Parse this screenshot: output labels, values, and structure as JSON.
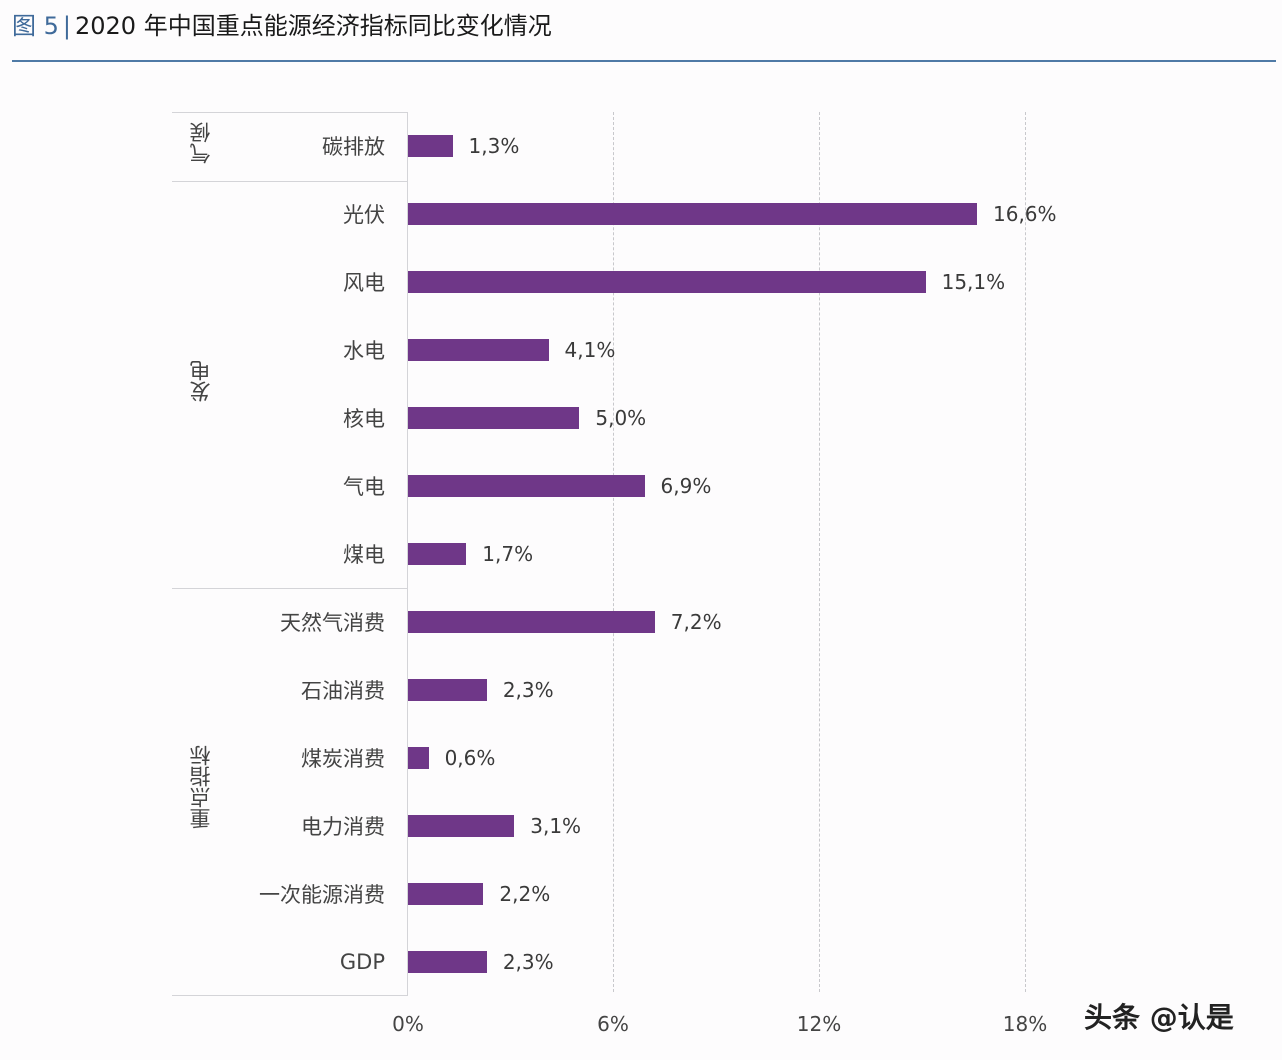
{
  "header": {
    "fig_label": "图 5",
    "separator": "|",
    "title": "2020 年中国重点能源经济指标同比变化情况"
  },
  "watermark": "头条 @认是",
  "colors": {
    "bar": "#6f3788",
    "rule": "#4f7aa6",
    "fig_label": "#3f6a9a"
  },
  "chart_data": {
    "type": "bar",
    "orientation": "horizontal",
    "title": "2020 年中国重点能源经济指标同比变化情况",
    "xlabel": "",
    "ylabel": "",
    "xlim": [
      0,
      18
    ],
    "x_ticks": [
      "0%",
      "6%",
      "12%",
      "18%"
    ],
    "grid": "vertical dashed at 6%, 12%, 18%",
    "groups": [
      {
        "name": "气候",
        "categories": [
          "碳排放"
        ]
      },
      {
        "name": "发电",
        "categories": [
          "光伏",
          "风电",
          "水电",
          "核电",
          "气电",
          "煤电"
        ]
      },
      {
        "name": "重点指标",
        "categories": [
          "天然气消费",
          "石油消费",
          "煤炭消费",
          "电力消费",
          "一次能源消费",
          "GDP"
        ]
      }
    ],
    "categories": [
      "碳排放",
      "光伏",
      "风电",
      "水电",
      "核电",
      "气电",
      "煤电",
      "天然气消费",
      "石油消费",
      "煤炭消费",
      "电力消费",
      "一次能源消费",
      "GDP"
    ],
    "values": [
      1.3,
      16.6,
      15.1,
      4.1,
      5.0,
      6.9,
      1.7,
      7.2,
      2.3,
      0.6,
      3.1,
      2.2,
      2.3
    ],
    "value_labels": [
      "1,3%",
      "16,6%",
      "15,1%",
      "4,1%",
      "5,0%",
      "6,9%",
      "1,7%",
      "7,2%",
      "2,3%",
      "0,6%",
      "3,1%",
      "2,2%",
      "2,3%"
    ]
  }
}
